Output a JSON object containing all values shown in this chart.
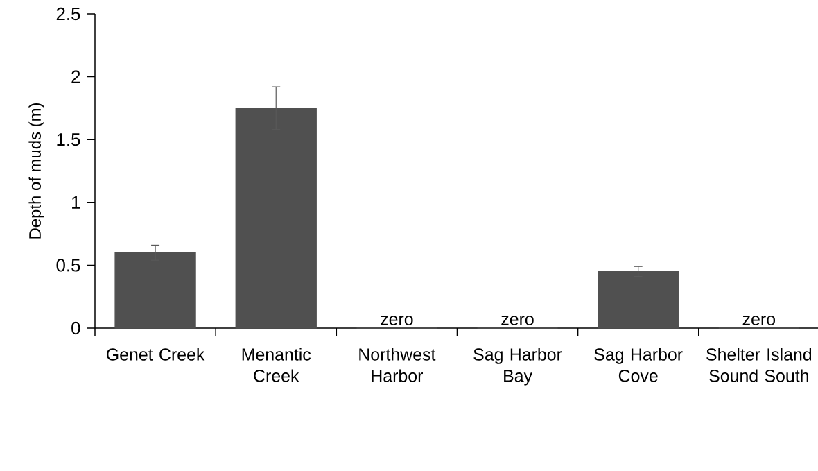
{
  "chart_data": {
    "type": "bar",
    "ylabel": "Depth of muds (m)",
    "categories": [
      "Genet Creek",
      "Menantic Creek",
      "Northwest Harbor",
      "Sag Harbor Bay",
      "Sag Harbor Cove",
      "Shelter Island Sound South"
    ],
    "values": [
      0.6,
      1.75,
      0,
      0,
      0.45,
      0
    ],
    "errors": [
      0.06,
      0.17,
      null,
      null,
      0.04,
      null
    ],
    "value_labels": [
      null,
      null,
      "zero",
      "zero",
      null,
      "zero"
    ],
    "color": "#505050",
    "ylim": [
      0,
      2.5
    ],
    "yticks": [
      0,
      0.5,
      1,
      1.5,
      2,
      2.5
    ],
    "grid": false
  }
}
